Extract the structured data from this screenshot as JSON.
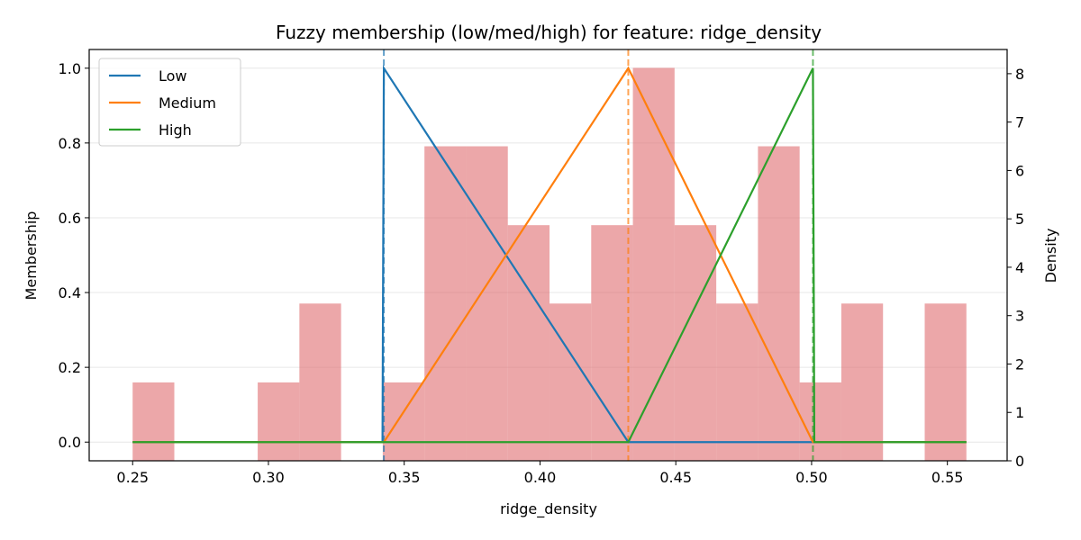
{
  "chart_data": {
    "type": "line",
    "title": "Fuzzy membership (low/med/high) for feature: ridge_density",
    "xlabel": "ridge_density",
    "ylabel": "Membership",
    "y2label": "Density",
    "xlim": [
      0.234,
      0.572
    ],
    "ylim": [
      -0.05,
      1.05
    ],
    "y2lim": [
      0,
      8.5
    ],
    "xticks": [
      0.25,
      0.3,
      0.35,
      0.4,
      0.45,
      0.5,
      0.55
    ],
    "yticks": [
      0.0,
      0.2,
      0.4,
      0.6,
      0.8,
      1.0
    ],
    "y2ticks": [
      0,
      1,
      2,
      3,
      4,
      5,
      6,
      7,
      8
    ],
    "grid": "horizontal",
    "legend_position": "top-left",
    "series": [
      {
        "name": "Low",
        "color": "#1f77b4",
        "x": [
          0.25,
          0.342,
          0.3425,
          0.4325,
          0.5005,
          0.557
        ],
        "y": [
          0.0,
          0.0,
          1.0,
          0.0,
          0.0,
          0.0
        ]
      },
      {
        "name": "Medium",
        "color": "#ff7f0e",
        "x": [
          0.25,
          0.3425,
          0.4325,
          0.5005,
          0.557
        ],
        "y": [
          0.0,
          0.0,
          1.0,
          0.0,
          0.0
        ]
      },
      {
        "name": "High",
        "color": "#2ca02c",
        "x": [
          0.25,
          0.4325,
          0.5005,
          0.501,
          0.557
        ],
        "y": [
          0.0,
          0.0,
          1.0,
          0.0,
          0.0
        ]
      }
    ],
    "vlines": [
      {
        "x": 0.3425,
        "color": "#1f77b4"
      },
      {
        "x": 0.4325,
        "color": "#ff7f0e"
      },
      {
        "x": 0.5005,
        "color": "#2ca02c"
      }
    ],
    "histogram": {
      "color": "#e06c70",
      "bin_start": 0.25,
      "bin_width": 0.01535,
      "densities": [
        1.62,
        0,
        0,
        1.62,
        3.25,
        0,
        1.62,
        6.5,
        6.5,
        4.87,
        3.25,
        4.87,
        8.12,
        4.87,
        3.25,
        6.5,
        1.62,
        3.25,
        0,
        3.25
      ]
    }
  }
}
